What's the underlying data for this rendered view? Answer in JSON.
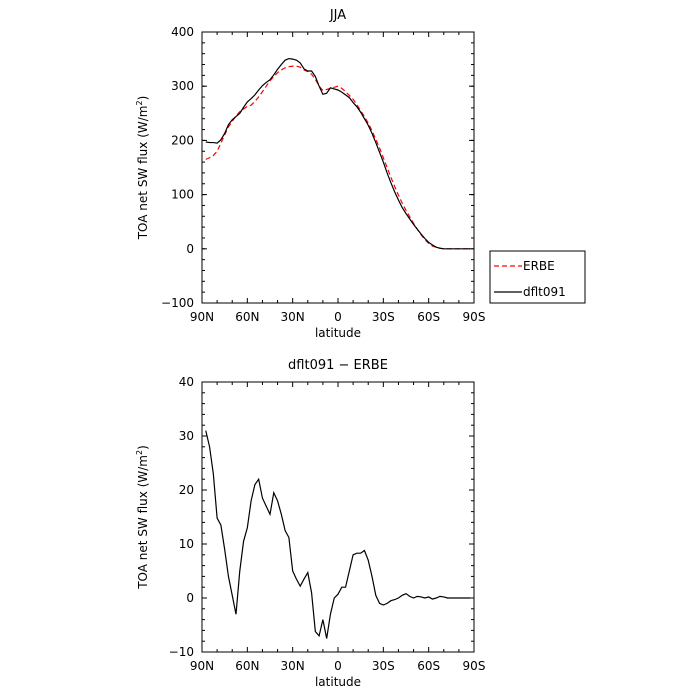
{
  "chart_data": [
    {
      "type": "line",
      "title": "JJA",
      "xlabel": "latitude",
      "ylabel": "TOA net SW flux (W/m²)",
      "ylabel_parts": [
        "TOA net SW flux (W/m",
        "2",
        ")"
      ],
      "xlim": [
        90,
        -90
      ],
      "ylim": [
        -100,
        400
      ],
      "xticks": [
        90,
        60,
        30,
        0,
        -30,
        -60,
        -90
      ],
      "xtick_labels": [
        "90N",
        "60N",
        "30N",
        "0",
        "30S",
        "60S",
        "90S"
      ],
      "yticks": [
        -100,
        0,
        100,
        200,
        300,
        400
      ],
      "ytick_labels": [
        "−100",
        "0",
        "100",
        "200",
        "300",
        "400"
      ],
      "legend_position": "right-outside",
      "x": [
        87.5,
        85,
        82.5,
        80,
        77.5,
        75,
        72.5,
        70,
        67.5,
        65,
        62.5,
        60,
        57.5,
        55,
        52.5,
        50,
        47.5,
        45,
        42.5,
        40,
        37.5,
        35,
        32.5,
        30,
        27.5,
        25,
        22.5,
        20,
        17.5,
        15,
        12.5,
        10,
        7.5,
        5,
        2.5,
        0,
        -2.5,
        -5,
        -7.5,
        -10,
        -12.5,
        -15,
        -17.5,
        -20,
        -22.5,
        -25,
        -27.5,
        -30,
        -32.5,
        -35,
        -37.5,
        -40,
        -42.5,
        -45,
        -47.5,
        -50,
        -52.5,
        -55,
        -57.5,
        -60,
        -62.5,
        -65,
        -67.5,
        -70,
        -72.5,
        -75,
        -77.5,
        -80,
        -82.5,
        -85,
        -87.5
      ],
      "series": [
        {
          "name": "ERBE",
          "color": "#ff0000",
          "style": "dashed",
          "values": [
            165,
            168,
            172,
            180,
            195,
            210,
            225,
            235,
            245,
            253,
            258,
            263,
            265,
            272,
            280,
            290,
            300,
            310,
            318,
            325,
            330,
            334,
            336,
            337,
            337,
            335,
            330,
            327,
            322,
            313,
            300,
            292,
            294,
            296,
            298,
            300,
            296,
            290,
            283,
            276,
            266,
            255,
            244,
            232,
            218,
            202,
            186,
            168,
            150,
            132,
            115,
            99,
            84,
            71,
            59,
            47,
            36,
            26,
            17,
            10,
            5,
            3,
            1,
            0,
            0,
            0,
            0,
            0,
            0,
            0,
            0
          ]
        },
        {
          "name": "dflt091",
          "color": "#000000",
          "style": "solid",
          "values": [
            197,
            196,
            196,
            195,
            201,
            213,
            229,
            238,
            244,
            250,
            261,
            271,
            277,
            284,
            293,
            301,
            307,
            312,
            321,
            331,
            340,
            348,
            351,
            350,
            348,
            343,
            332,
            328,
            328,
            318,
            300,
            285,
            287,
            297,
            295,
            293,
            289,
            284,
            279,
            270,
            262,
            252,
            240,
            228,
            213,
            196,
            178,
            160,
            140,
            122,
            105,
            90,
            76,
            65,
            55,
            45,
            36,
            27,
            19,
            12,
            7,
            3,
            1,
            0,
            0,
            0,
            0,
            0,
            0,
            0,
            0
          ]
        }
      ]
    },
    {
      "type": "line",
      "title": "dflt091 − ERBE",
      "xlabel": "latitude",
      "ylabel": "TOA net SW flux (W/m²)",
      "ylabel_parts": [
        "TOA net SW flux (W/m",
        "2",
        ")"
      ],
      "xlim": [
        90,
        -90
      ],
      "ylim": [
        -10,
        40
      ],
      "xticks": [
        90,
        60,
        30,
        0,
        -30,
        -60,
        -90
      ],
      "xtick_labels": [
        "90N",
        "60N",
        "30N",
        "0",
        "30S",
        "60S",
        "90S"
      ],
      "yticks": [
        -10,
        0,
        10,
        20,
        30,
        40
      ],
      "ytick_labels": [
        "−10",
        "0",
        "10",
        "20",
        "30",
        "40"
      ],
      "x": [
        87.5,
        85,
        82.5,
        80,
        77.5,
        75,
        72.5,
        70,
        67.5,
        65,
        62.5,
        60,
        57.5,
        55,
        52.5,
        50,
        47.5,
        45,
        42.5,
        40,
        37.5,
        35,
        32.5,
        30,
        27.5,
        25,
        22.5,
        20,
        17.5,
        15,
        12.5,
        10,
        7.5,
        5,
        2.5,
        0,
        -2.5,
        -5,
        -7.5,
        -10,
        -12.5,
        -15,
        -17.5,
        -20,
        -22.5,
        -25,
        -27.5,
        -30,
        -32.5,
        -35,
        -37.5,
        -40,
        -42.5,
        -45,
        -47.5,
        -50,
        -52.5,
        -55,
        -57.5,
        -60,
        -62.5,
        -65,
        -67.5,
        -70,
        -72.5,
        -75,
        -77.5,
        -80,
        -82.5,
        -85,
        -87.5
      ],
      "series": [
        {
          "color": "#000000",
          "style": "solid",
          "values": [
            31,
            28,
            23,
            14.8,
            13.5,
            9,
            4,
            0.5,
            -3,
            5,
            10.5,
            13,
            18,
            21,
            22,
            18.5,
            17,
            15.5,
            19.5,
            18,
            15.5,
            12.5,
            11.2,
            5,
            3.5,
            2.2,
            3.5,
            4.7,
            1,
            -6.2,
            -7,
            -4,
            -7.5,
            -3,
            0,
            0.7,
            2,
            2,
            5,
            8,
            8.3,
            8.3,
            8.8,
            7,
            4,
            0.5,
            -1,
            -1.3,
            -1,
            -0.5,
            -0.3,
            0,
            0.5,
            0.8,
            0.3,
            0,
            0.3,
            0.2,
            0,
            0.2,
            -0.2,
            0,
            0.3,
            0.2,
            0,
            0,
            0,
            0,
            0,
            0,
            0
          ]
        }
      ]
    }
  ]
}
